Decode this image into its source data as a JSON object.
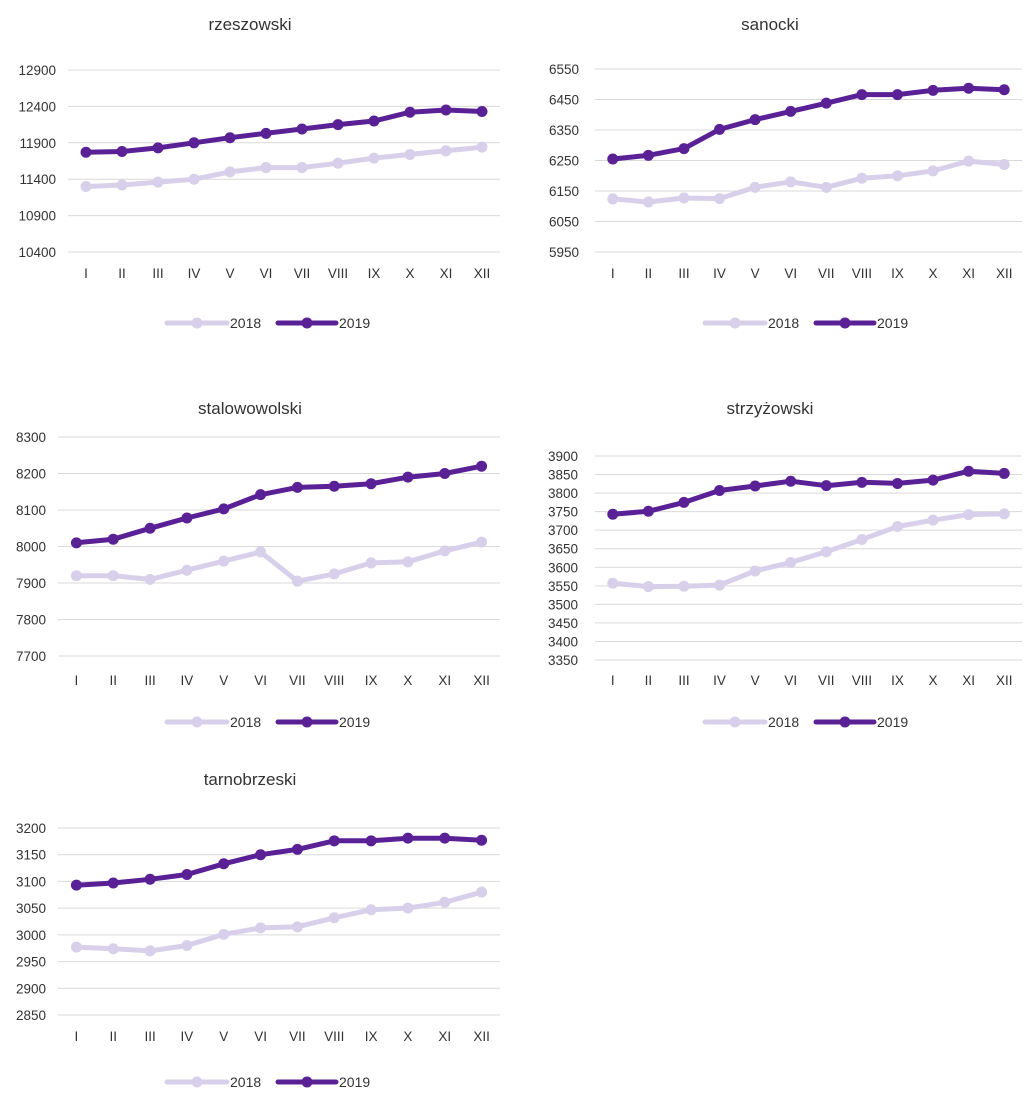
{
  "colors": {
    "series_2018": "#d8d0ea",
    "series_2019": "#5a2196",
    "grid": "#d9d9d9",
    "text": "#333333"
  },
  "legend": [
    "2018",
    "2019"
  ],
  "chart_data": [
    {
      "type": "line",
      "title": "rzeszowski",
      "categories": [
        "I",
        "II",
        "III",
        "IV",
        "V",
        "VI",
        "VII",
        "VIII",
        "IX",
        "X",
        "XI",
        "XII"
      ],
      "yticks": [
        "10400",
        "10900",
        "11400",
        "11900",
        "12400",
        "12900"
      ],
      "ylim": [
        10400,
        12900
      ],
      "grid": true,
      "legend_position": "bottom",
      "series": [
        {
          "name": "2018",
          "color": "#d8d0ea",
          "values": [
            11300,
            11320,
            11360,
            11400,
            11500,
            11560,
            11560,
            11620,
            11690,
            11740,
            11790,
            11840
          ]
        },
        {
          "name": "2019",
          "color": "#5a2196",
          "values": [
            11770,
            11780,
            11830,
            11900,
            11970,
            12030,
            12090,
            12150,
            12200,
            12320,
            12350,
            12330
          ]
        }
      ]
    },
    {
      "type": "line",
      "title": "sanocki",
      "categories": [
        "I",
        "II",
        "III",
        "IV",
        "V",
        "VI",
        "VII",
        "VIII",
        "IX",
        "X",
        "XI",
        "XII"
      ],
      "yticks": [
        "5950",
        "6050",
        "6150",
        "6250",
        "6350",
        "6450",
        "6550"
      ],
      "ylim": [
        5950,
        6550
      ],
      "grid": true,
      "legend_position": "bottom",
      "series": [
        {
          "name": "2018",
          "color": "#d8d0ea",
          "values": [
            6124,
            6114,
            6127,
            6125,
            6162,
            6180,
            6162,
            6192,
            6200,
            6216,
            6248,
            6237
          ]
        },
        {
          "name": "2019",
          "color": "#5a2196",
          "values": [
            6255,
            6267,
            6289,
            6352,
            6384,
            6411,
            6438,
            6466,
            6466,
            6480,
            6487,
            6482
          ]
        }
      ]
    },
    {
      "type": "line",
      "title": "stalowowolski",
      "categories": [
        "I",
        "II",
        "III",
        "IV",
        "V",
        "VI",
        "VII",
        "VIII",
        "IX",
        "X",
        "XI",
        "XII"
      ],
      "yticks": [
        "7700",
        "7800",
        "7900",
        "8000",
        "8100",
        "8200",
        "8300"
      ],
      "ylim": [
        7700,
        8300
      ],
      "grid": true,
      "legend_position": "bottom",
      "series": [
        {
          "name": "2018",
          "color": "#d8d0ea",
          "values": [
            7920,
            7920,
            7910,
            7935,
            7960,
            7985,
            7905,
            7925,
            7955,
            7958,
            7988,
            8012
          ]
        },
        {
          "name": "2019",
          "color": "#5a2196",
          "values": [
            8010,
            8020,
            8050,
            8078,
            8103,
            8142,
            8162,
            8165,
            8172,
            8190,
            8200,
            8220
          ]
        }
      ]
    },
    {
      "type": "line",
      "title": "strzyżowski",
      "categories": [
        "I",
        "II",
        "III",
        "IV",
        "V",
        "VI",
        "VII",
        "VIII",
        "IX",
        "X",
        "XI",
        "XII"
      ],
      "yticks": [
        "3350",
        "3400",
        "3450",
        "3500",
        "3550",
        "3600",
        "3650",
        "3700",
        "3750",
        "3800",
        "3850",
        "3900"
      ],
      "ylim": [
        3350,
        3900
      ],
      "grid": true,
      "legend_position": "bottom",
      "series": [
        {
          "name": "2018",
          "color": "#d8d0ea",
          "values": [
            3557,
            3548,
            3549,
            3552,
            3590,
            3613,
            3642,
            3675,
            3710,
            3727,
            3742,
            3744
          ]
        },
        {
          "name": "2019",
          "color": "#5a2196",
          "values": [
            3743,
            3751,
            3775,
            3807,
            3819,
            3832,
            3820,
            3829,
            3826,
            3835,
            3859,
            3853
          ]
        }
      ]
    },
    {
      "type": "line",
      "title": "tarnobrzeski",
      "categories": [
        "I",
        "II",
        "III",
        "IV",
        "V",
        "VI",
        "VII",
        "VIII",
        "IX",
        "X",
        "XI",
        "XII"
      ],
      "yticks": [
        "2850",
        "2900",
        "2950",
        "3000",
        "3050",
        "3100",
        "3150",
        "3200"
      ],
      "ylim": [
        2850,
        3200
      ],
      "grid": true,
      "legend_position": "bottom",
      "series": [
        {
          "name": "2018",
          "color": "#d8d0ea",
          "values": [
            2977,
            2974,
            2970,
            2980,
            3001,
            3013,
            3015,
            3032,
            3047,
            3050,
            3061,
            3080
          ]
        },
        {
          "name": "2019",
          "color": "#5a2196",
          "values": [
            3093,
            3097,
            3104,
            3113,
            3133,
            3150,
            3160,
            3176,
            3176,
            3181,
            3181,
            3177
          ]
        }
      ]
    }
  ]
}
